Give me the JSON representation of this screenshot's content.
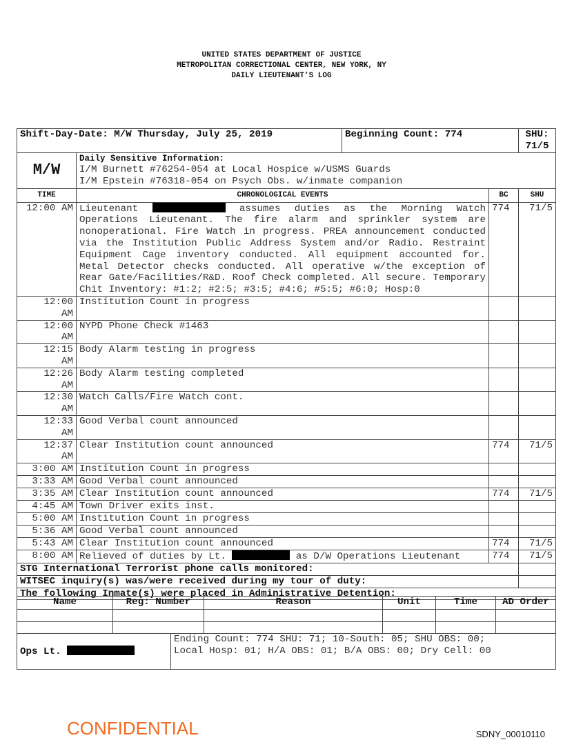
{
  "header": {
    "line1": "UNITED STATES DEPARTMENT OF JUSTICE",
    "line2": "METROPOLITAN CORRECTIONAL CENTER, NEW YORK, NY",
    "line3": "DAILY LIEUTENANT’S LOG"
  },
  "summary": {
    "shift_day_date": "Shift-Day-Date: M/W Thursday, July 25, 2019",
    "beginning_count": "Beginning Count: 774",
    "shu": "SHU: 71/5"
  },
  "shift_code": "M/W",
  "sensitive": {
    "label": "Daily Sensitive Information:",
    "lines": [
      "I/M Burnett #76254-054 at Local Hospice w/USMS Guards",
      "I/M Epstein #76318-054 on Psych Obs. w/inmate companion"
    ]
  },
  "columns": {
    "time": "TIME",
    "events": "CHRONOLOGICAL EVENTS",
    "bc": "BC",
    "shu": "SHU"
  },
  "first_event": {
    "time": "12:00 AM",
    "before": "Lieutenant",
    "after": "assumes duties as the Morning Watch Operations Lieutenant. The fire alarm and sprinkler system are nonoperational. Fire Watch in progress.  PREA announcement conducted via the Institution Public Address System and/or Radio. Restraint Equipment Cage inventory conducted. All equipment accounted for. Metal Detector checks conducted. All operative w/the exception of Rear Gate/Facilities/R&D.  Roof Check completed. All secure. Temporary Chit Inventory: #1:2; #2:5; #3:5; #4:6; #5:5; #6:0; Hosp:0",
    "bc": "774",
    "shu": "71/5"
  },
  "events": [
    {
      "time": "12:00 AM",
      "text": "Institution Count in progress",
      "bc": "",
      "shu": ""
    },
    {
      "time": "12:00 AM",
      "text": "NYPD Phone Check #1463",
      "bc": "",
      "shu": ""
    },
    {
      "time": "12:15 AM",
      "text": "Body Alarm testing in progress",
      "bc": "",
      "shu": ""
    },
    {
      "time": "12:26 AM",
      "text": "Body Alarm testing completed",
      "bc": "",
      "shu": ""
    },
    {
      "time": "12:30 AM",
      "text": "Watch Calls/Fire Watch cont.",
      "bc": "",
      "shu": ""
    },
    {
      "time": "12:33 AM",
      "text": "Good Verbal count announced",
      "bc": "",
      "shu": ""
    },
    {
      "time": "12:37 AM",
      "text": "Clear Institution count announced",
      "bc": "774",
      "shu": "71/5"
    },
    {
      "time": "3:00 AM",
      "text": "Institution Count in progress",
      "bc": "",
      "shu": ""
    },
    {
      "time": "3:33 AM",
      "text": "Good Verbal count announced",
      "bc": "",
      "shu": ""
    },
    {
      "time": "3:35 AM",
      "text": "Clear Institution count announced",
      "bc": "774",
      "shu": "71/5"
    },
    {
      "time": "4:45 AM",
      "text": "Town Driver exits inst.",
      "bc": "",
      "shu": ""
    },
    {
      "time": "5:00 AM",
      "text": "Institution Count in progress",
      "bc": "",
      "shu": ""
    },
    {
      "time": "5:36 AM",
      "text": "Good Verbal count announced",
      "bc": "",
      "shu": ""
    },
    {
      "time": "5:43 AM",
      "text": "Clear Institution count announced",
      "bc": "774",
      "shu": "71/5"
    }
  ],
  "last_event": {
    "time": "8:00 AM",
    "before": "Relieved of duties by Lt.",
    "after": "as D/W Operations Lieutenant",
    "bc": "774",
    "shu": "71/5"
  },
  "stg": "STG International Terrorist phone calls monitored:",
  "witsec": "WITSEC inquiry(s) was/were received during my tour of duty:",
  "ad_intro": "The following Inmate(s) were placed in Administrative Detention:",
  "ad_columns": [
    "Name",
    "Reg: Number",
    "Reason",
    "Unit",
    "Time",
    "AD Order"
  ],
  "ops": {
    "label": "Ops Lt.",
    "ending_line1": "Ending Count: 774 SHU: 71; 10-South: 05; SHU OBS: 00;",
    "ending_line2": "Local Hosp: 01; H/A OBS: 01; B/A OBS: 00; Dry Cell: 00"
  },
  "footer": {
    "confidential": "CONFIDENTIAL",
    "bates": "SDNY_00010110"
  },
  "colors": {
    "confidential": "#f26b21",
    "redaction": "#000000"
  }
}
